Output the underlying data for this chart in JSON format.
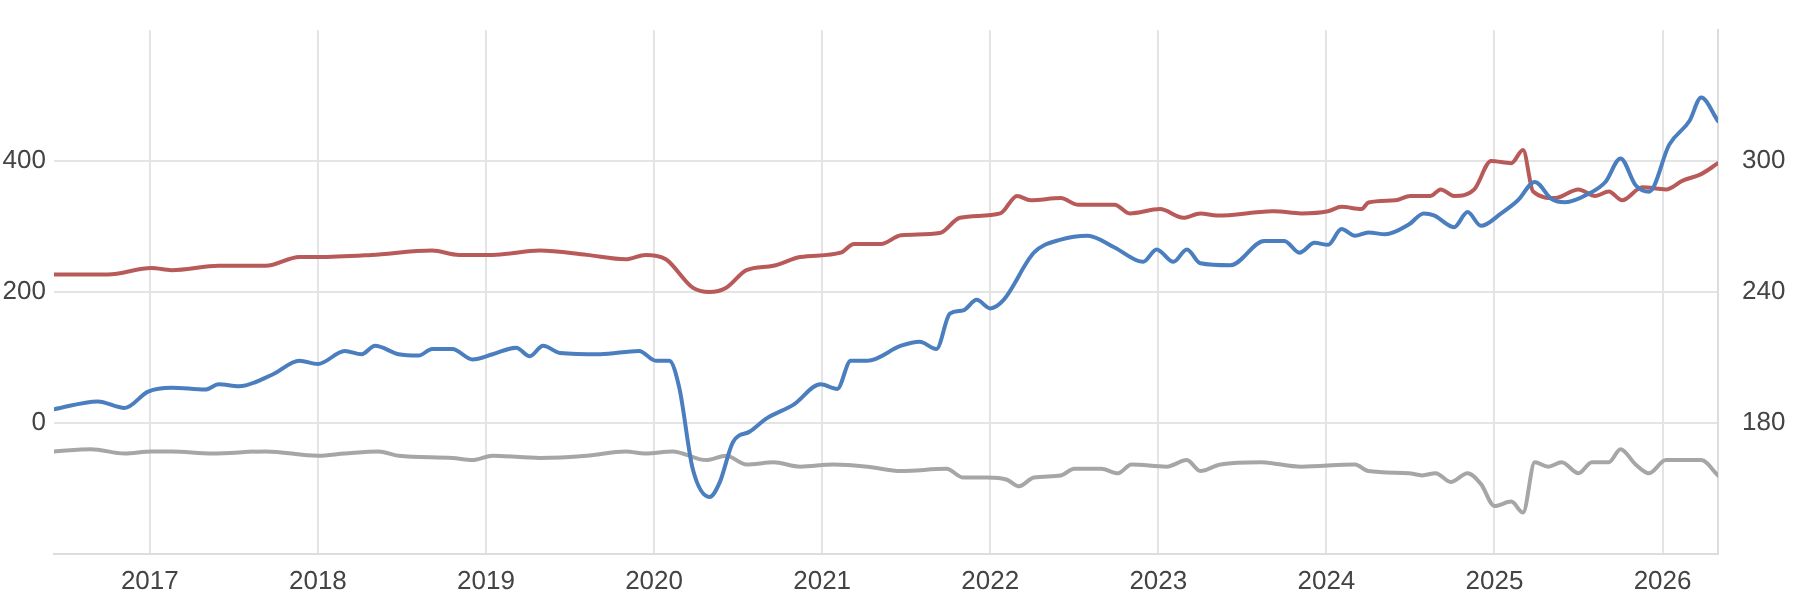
{
  "chart_data": {
    "type": "line",
    "xlim": [
      2016.43,
      2026.33
    ],
    "xticks": [
      2017,
      2018,
      2019,
      2020,
      2021,
      2022,
      2023,
      2024,
      2025,
      2026
    ],
    "ylim": [
      -200,
      600
    ],
    "yticks": [
      0,
      200,
      400
    ],
    "y2lim": [
      120,
      360
    ],
    "y2ticks": [
      180,
      240,
      300
    ],
    "grid": true,
    "marker": "none",
    "line_style": "solid",
    "series": [
      {
        "color": "#4a7ebf",
        "axis": "y",
        "x": [
          2016.43,
          2016.69,
          2016.85,
          2016.99,
          2017.13,
          2017.33,
          2017.41,
          2017.53,
          2017.73,
          2017.89,
          2018.0,
          2018.16,
          2018.26,
          2018.34,
          2018.48,
          2018.6,
          2018.68,
          2018.8,
          2018.92,
          2019.04,
          2019.18,
          2019.26,
          2019.34,
          2019.44,
          2019.68,
          2019.91,
          2020.01,
          2020.09,
          2020.15,
          2020.23,
          2020.33,
          2020.39,
          2020.47,
          2020.57,
          2020.67,
          2020.83,
          2020.99,
          2021.09,
          2021.17,
          2021.27,
          2021.47,
          2021.58,
          2021.68,
          2021.76,
          2021.84,
          2021.92,
          2022.0,
          2022.08,
          2022.26,
          2022.42,
          2022.58,
          2022.74,
          2022.91,
          2022.99,
          2023.09,
          2023.17,
          2023.25,
          2023.43,
          2023.63,
          2023.75,
          2023.84,
          2023.93,
          2024.01,
          2024.09,
          2024.17,
          2024.25,
          2024.35,
          2024.49,
          2024.58,
          2024.64,
          2024.76,
          2024.84,
          2024.92,
          2025.04,
          2025.14,
          2025.24,
          2025.34,
          2025.42,
          2025.56,
          2025.66,
          2025.75,
          2025.84,
          2025.92,
          2026.04,
          2026.16,
          2026.23,
          2026.33
        ],
        "values": [
          21,
          33,
          23,
          48,
          54,
          51,
          59,
          56,
          74,
          95,
          90,
          110,
          105,
          118,
          105,
          103,
          113,
          113,
          97,
          105,
          115,
          102,
          118,
          107,
          105,
          110,
          95,
          95,
          54,
          -70,
          -113,
          -91,
          -29,
          -13,
          7,
          28,
          59,
          52,
          95,
          95,
          118,
          124,
          113,
          167,
          172,
          188,
          175,
          188,
          260,
          280,
          286,
          268,
          246,
          265,
          246,
          265,
          244,
          241,
          278,
          278,
          260,
          275,
          272,
          296,
          286,
          291,
          288,
          303,
          320,
          317,
          299,
          322,
          301,
          320,
          340,
          368,
          342,
          337,
          350,
          368,
          404,
          363,
          353,
          425,
          461,
          497,
          461
        ]
      },
      {
        "color": "#b85a5a",
        "axis": "y2",
        "x": [
          2016.43,
          2016.75,
          2017.01,
          2017.13,
          2017.41,
          2017.69,
          2017.89,
          2018.0,
          2018.32,
          2018.68,
          2018.84,
          2019.04,
          2019.32,
          2019.6,
          2019.83,
          2019.95,
          2020.07,
          2020.23,
          2020.33,
          2020.43,
          2020.55,
          2020.71,
          2020.87,
          2021.11,
          2021.19,
          2021.35,
          2021.47,
          2021.7,
          2021.82,
          2022.06,
          2022.16,
          2022.24,
          2022.42,
          2022.52,
          2022.74,
          2022.83,
          2023.01,
          2023.15,
          2023.25,
          2023.35,
          2023.69,
          2023.85,
          2024.01,
          2024.09,
          2024.21,
          2024.25,
          2024.41,
          2024.5,
          2024.62,
          2024.68,
          2024.76,
          2024.88,
          2024.98,
          2025.1,
          2025.17,
          2025.23,
          2025.36,
          2025.5,
          2025.6,
          2025.68,
          2025.76,
          2025.88,
          2026.02,
          2026.12,
          2026.23,
          2026.33
        ],
        "values": [
          248,
          248,
          251,
          250,
          252,
          252,
          256,
          256,
          257,
          259,
          257,
          257,
          259,
          257,
          255,
          257,
          255,
          242,
          240,
          242,
          250,
          252,
          256,
          258,
          262,
          262,
          266,
          267,
          274,
          276,
          284,
          282,
          283,
          280,
          280,
          276,
          278,
          274,
          276,
          275,
          277,
          276,
          277,
          279,
          278,
          281,
          282,
          284,
          284,
          287,
          284,
          287,
          300,
          299,
          305,
          286,
          283,
          287,
          284,
          286,
          282,
          288,
          287,
          291,
          294,
          299
        ]
      },
      {
        "color": "#a6a6a6",
        "axis": "y2",
        "x": [
          2016.43,
          2016.65,
          2016.85,
          2017.01,
          2017.13,
          2017.37,
          2017.69,
          2018.0,
          2018.16,
          2018.36,
          2018.48,
          2018.8,
          2018.92,
          2019.04,
          2019.32,
          2019.6,
          2019.83,
          2019.95,
          2020.11,
          2020.31,
          2020.43,
          2020.55,
          2020.71,
          2020.87,
          2021.07,
          2021.27,
          2021.47,
          2021.74,
          2021.84,
          2021.98,
          2022.1,
          2022.17,
          2022.26,
          2022.42,
          2022.5,
          2022.66,
          2022.76,
          2022.84,
          2023.05,
          2023.17,
          2023.25,
          2023.37,
          2023.61,
          2023.85,
          2024.17,
          2024.25,
          2024.49,
          2024.57,
          2024.65,
          2024.74,
          2024.84,
          2024.92,
          2025.0,
          2025.1,
          2025.17,
          2025.24,
          2025.32,
          2025.4,
          2025.5,
          2025.58,
          2025.68,
          2025.75,
          2025.84,
          2025.92,
          2026.02,
          2026.23,
          2026.33
        ],
        "values": [
          167,
          168,
          166,
          167,
          167,
          166,
          167,
          165,
          166,
          167,
          165,
          164,
          163,
          165,
          164,
          165,
          167,
          166,
          167,
          163,
          165,
          161,
          162,
          160,
          161,
          160,
          158,
          159,
          155,
          155,
          154,
          151,
          155,
          156,
          159,
          159,
          157,
          161,
          160,
          163,
          158,
          161,
          162,
          160,
          161,
          158,
          157,
          156,
          157,
          153,
          157,
          152,
          142,
          144,
          139,
          162,
          160,
          162,
          157,
          162,
          162,
          168,
          161,
          157,
          163,
          163,
          156
        ]
      }
    ]
  }
}
